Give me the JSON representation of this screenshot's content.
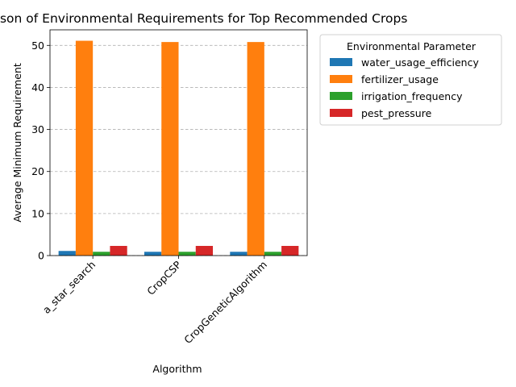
{
  "chart_data": {
    "type": "bar",
    "title": "Comparison of Environmental Requirements for Top Recommended Crops",
    "xlabel": "Algorithm",
    "ylabel": "Average Minimum Requirement",
    "categories": [
      "a_star_search",
      "CropCSP",
      "CropGeneticAlgorithm"
    ],
    "ylim": [
      0,
      53.7
    ],
    "yticks": [
      0,
      10,
      20,
      30,
      40,
      50
    ],
    "grid": "y-dashed",
    "legend": {
      "title": "Environmental Parameter",
      "placement": "outside-right-top"
    },
    "series": [
      {
        "name": "water_usage_efficiency",
        "color": "#1f77b4",
        "values": [
          1.1,
          0.9,
          0.9
        ]
      },
      {
        "name": "fertilizer_usage",
        "color": "#ff7f0e",
        "values": [
          51.1,
          50.8,
          50.8
        ]
      },
      {
        "name": "irrigation_frequency",
        "color": "#2ca02c",
        "values": [
          0.9,
          0.9,
          0.9
        ]
      },
      {
        "name": "pest_pressure",
        "color": "#d62728",
        "values": [
          2.3,
          2.3,
          2.3
        ]
      }
    ]
  }
}
